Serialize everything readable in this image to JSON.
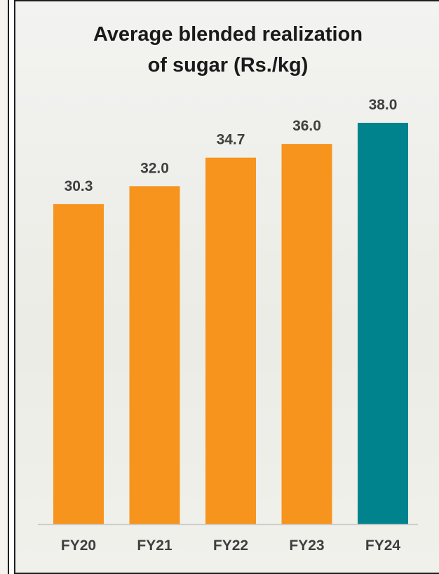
{
  "chart_data": {
    "type": "bar",
    "title_lines": [
      "Average blended realization",
      "of sugar (Rs./kg)"
    ],
    "categories": [
      "FY20",
      "FY21",
      "FY22",
      "FY23",
      "FY24"
    ],
    "values": [
      30.3,
      32.0,
      34.7,
      36.0,
      38.0
    ],
    "value_labels": [
      "30.3",
      "32.0",
      "34.7",
      "36.0",
      "38.0"
    ],
    "ylim": [
      0,
      38.0
    ],
    "grid": false,
    "legend": "none",
    "colors": {
      "bar": "#f7941d",
      "highlight": "#00838c",
      "axis": "#c9c9c9"
    },
    "highlight_index": 4
  }
}
